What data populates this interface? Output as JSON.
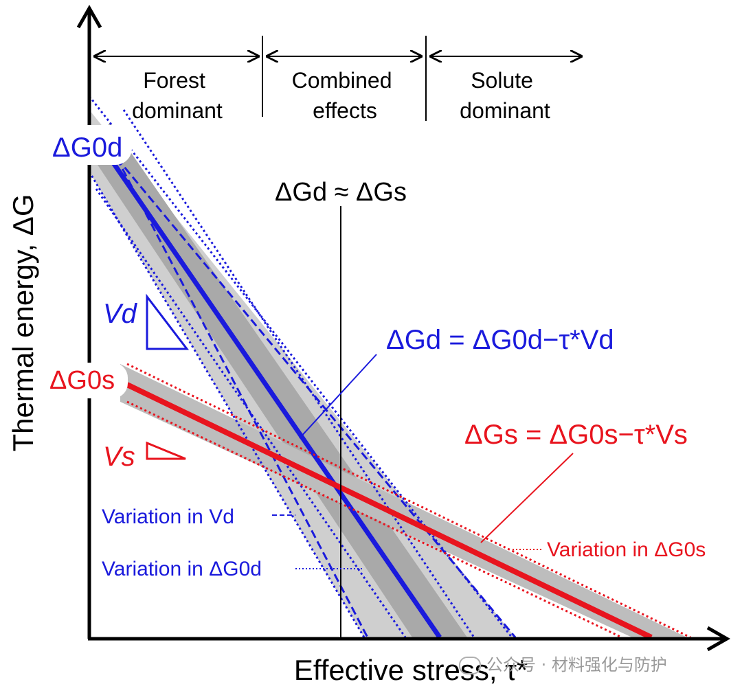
{
  "regions": {
    "forest": [
      "Forest",
      "dominant"
    ],
    "combined": [
      "Combined",
      "effects"
    ],
    "solute": [
      "Solute",
      "dominant"
    ]
  },
  "axes": {
    "y_label": "Thermal energy, ΔG",
    "x_label": "Effective stress, τ*"
  },
  "labels": {
    "dG0d": "ΔG0d",
    "dG0s": "ΔG0s",
    "equal": "ΔGd ≈ ΔGs",
    "Vd": "Vd",
    "Vs": "Vs",
    "eq_d": "ΔGd = ΔG0d−τ*Vd",
    "eq_s": "ΔGs = ΔG0s−τ*Vs",
    "var_Vd": "Variation in Vd",
    "var_G0d": "Variation in ΔG0d",
    "var_G0s": "Variation in ΔG0s"
  },
  "colors": {
    "blue": "#1a1adc",
    "red": "#e8141e",
    "band": "#c8c8c8",
    "black": "#000000"
  },
  "watermark": "公众号 · 材料强化与防护"
}
